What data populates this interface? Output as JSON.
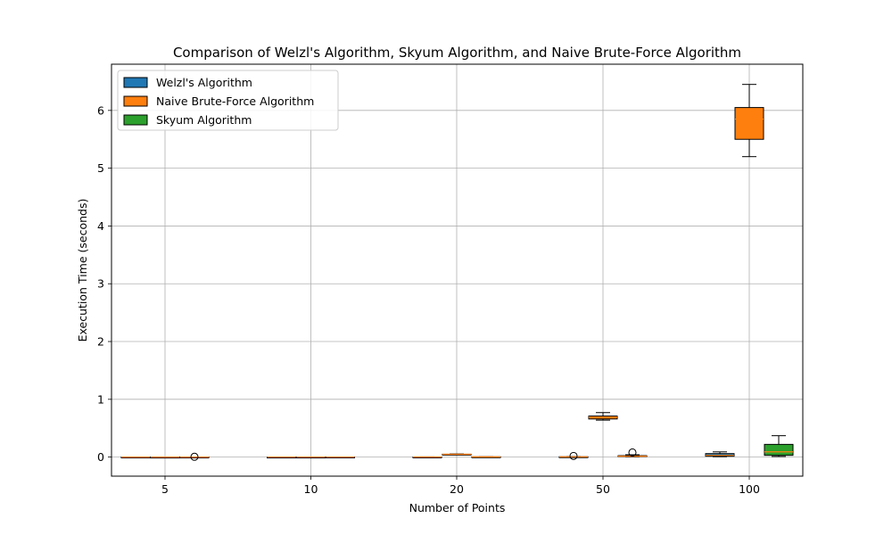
{
  "chart_data": {
    "type": "box",
    "title": "Comparison of Welzl's Algorithm, Skyum Algorithm, and Naive Brute-Force Algorithm",
    "xlabel": "Number of Points",
    "ylabel": "Execution Time (seconds)",
    "categories": [
      "5",
      "10",
      "20",
      "50",
      "100"
    ],
    "y_ticks": [
      0,
      1,
      2,
      3,
      4,
      5,
      6
    ],
    "ylim": [
      -0.33,
      6.8
    ],
    "grid": true,
    "legend_position": "top-left",
    "series": [
      {
        "name": "Welzl's Algorithm",
        "color": "#1f77b4",
        "boxes": [
          {
            "min": 0.0,
            "q1": 0.0,
            "median": 0.0,
            "q3": 0.001,
            "max": 0.001,
            "outliers": []
          },
          {
            "min": 0.0,
            "q1": 0.0,
            "median": 0.001,
            "q3": 0.001,
            "max": 0.002,
            "outliers": []
          },
          {
            "min": 0.001,
            "q1": 0.001,
            "median": 0.002,
            "q3": 0.002,
            "max": 0.003,
            "outliers": []
          },
          {
            "min": 0.003,
            "q1": 0.004,
            "median": 0.005,
            "q3": 0.006,
            "max": 0.008,
            "outliers": [
              0.02
            ]
          },
          {
            "min": 0.008,
            "q1": 0.015,
            "median": 0.03,
            "q3": 0.06,
            "max": 0.09,
            "outliers": []
          }
        ]
      },
      {
        "name": "Naive Brute-Force Algorithm",
        "color": "#ff7f0e",
        "boxes": [
          {
            "min": 0.0,
            "q1": 0.0,
            "median": 0.0,
            "q3": 0.0,
            "max": 0.001,
            "outliers": []
          },
          {
            "min": 0.0,
            "q1": 0.0,
            "median": 0.001,
            "q3": 0.001,
            "max": 0.001,
            "outliers": []
          },
          {
            "min": 0.04,
            "q1": 0.045,
            "median": 0.048,
            "q3": 0.05,
            "max": 0.055,
            "outliers": []
          },
          {
            "min": 0.64,
            "q1": 0.66,
            "median": 0.69,
            "q3": 0.71,
            "max": 0.77,
            "outliers": []
          },
          {
            "min": 5.2,
            "q1": 5.5,
            "median": 5.85,
            "q3": 6.05,
            "max": 6.45,
            "outliers": []
          }
        ]
      },
      {
        "name": "Skyum Algorithm",
        "color": "#2ca02c",
        "boxes": [
          {
            "min": 0.0,
            "q1": 0.0,
            "median": 0.0,
            "q3": 0.001,
            "max": 0.001,
            "outliers": [
              0.005
            ]
          },
          {
            "min": 0.0,
            "q1": 0.001,
            "median": 0.001,
            "q3": 0.002,
            "max": 0.002,
            "outliers": []
          },
          {
            "min": 0.002,
            "q1": 0.003,
            "median": 0.004,
            "q3": 0.005,
            "max": 0.006,
            "outliers": []
          },
          {
            "min": 0.005,
            "q1": 0.01,
            "median": 0.015,
            "q3": 0.025,
            "max": 0.04,
            "outliers": [
              0.08
            ]
          },
          {
            "min": 0.01,
            "q1": 0.03,
            "median": 0.09,
            "q3": 0.22,
            "max": 0.37,
            "outliers": []
          }
        ]
      }
    ]
  }
}
